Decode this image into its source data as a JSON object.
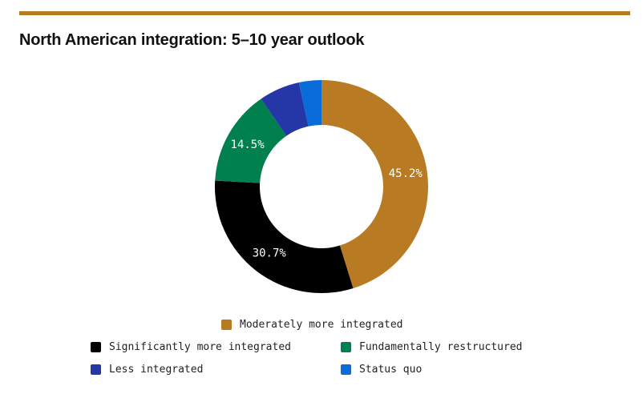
{
  "header": {
    "rule_color": "#B87A22"
  },
  "chart_data": {
    "type": "pie",
    "title": "North American integration: 5–10 year outlook",
    "style": "donut",
    "legend_placement": "bottom",
    "slices": [
      {
        "label": "Moderately more integrated",
        "value": 45.2,
        "display": "45.2%",
        "color": "#B87A22"
      },
      {
        "label": "Significantly more integrated",
        "value": 30.7,
        "display": "30.7%",
        "color": "#000000"
      },
      {
        "label": "Fundamentally restructured",
        "value": 14.5,
        "display": "14.5%",
        "color": "#007F4F"
      },
      {
        "label": "Less integrated",
        "value": 6.2,
        "display": "",
        "color": "#2537A6"
      },
      {
        "label": "Status quo",
        "value": 3.4,
        "display": "",
        "color": "#0A6CD9"
      }
    ]
  }
}
